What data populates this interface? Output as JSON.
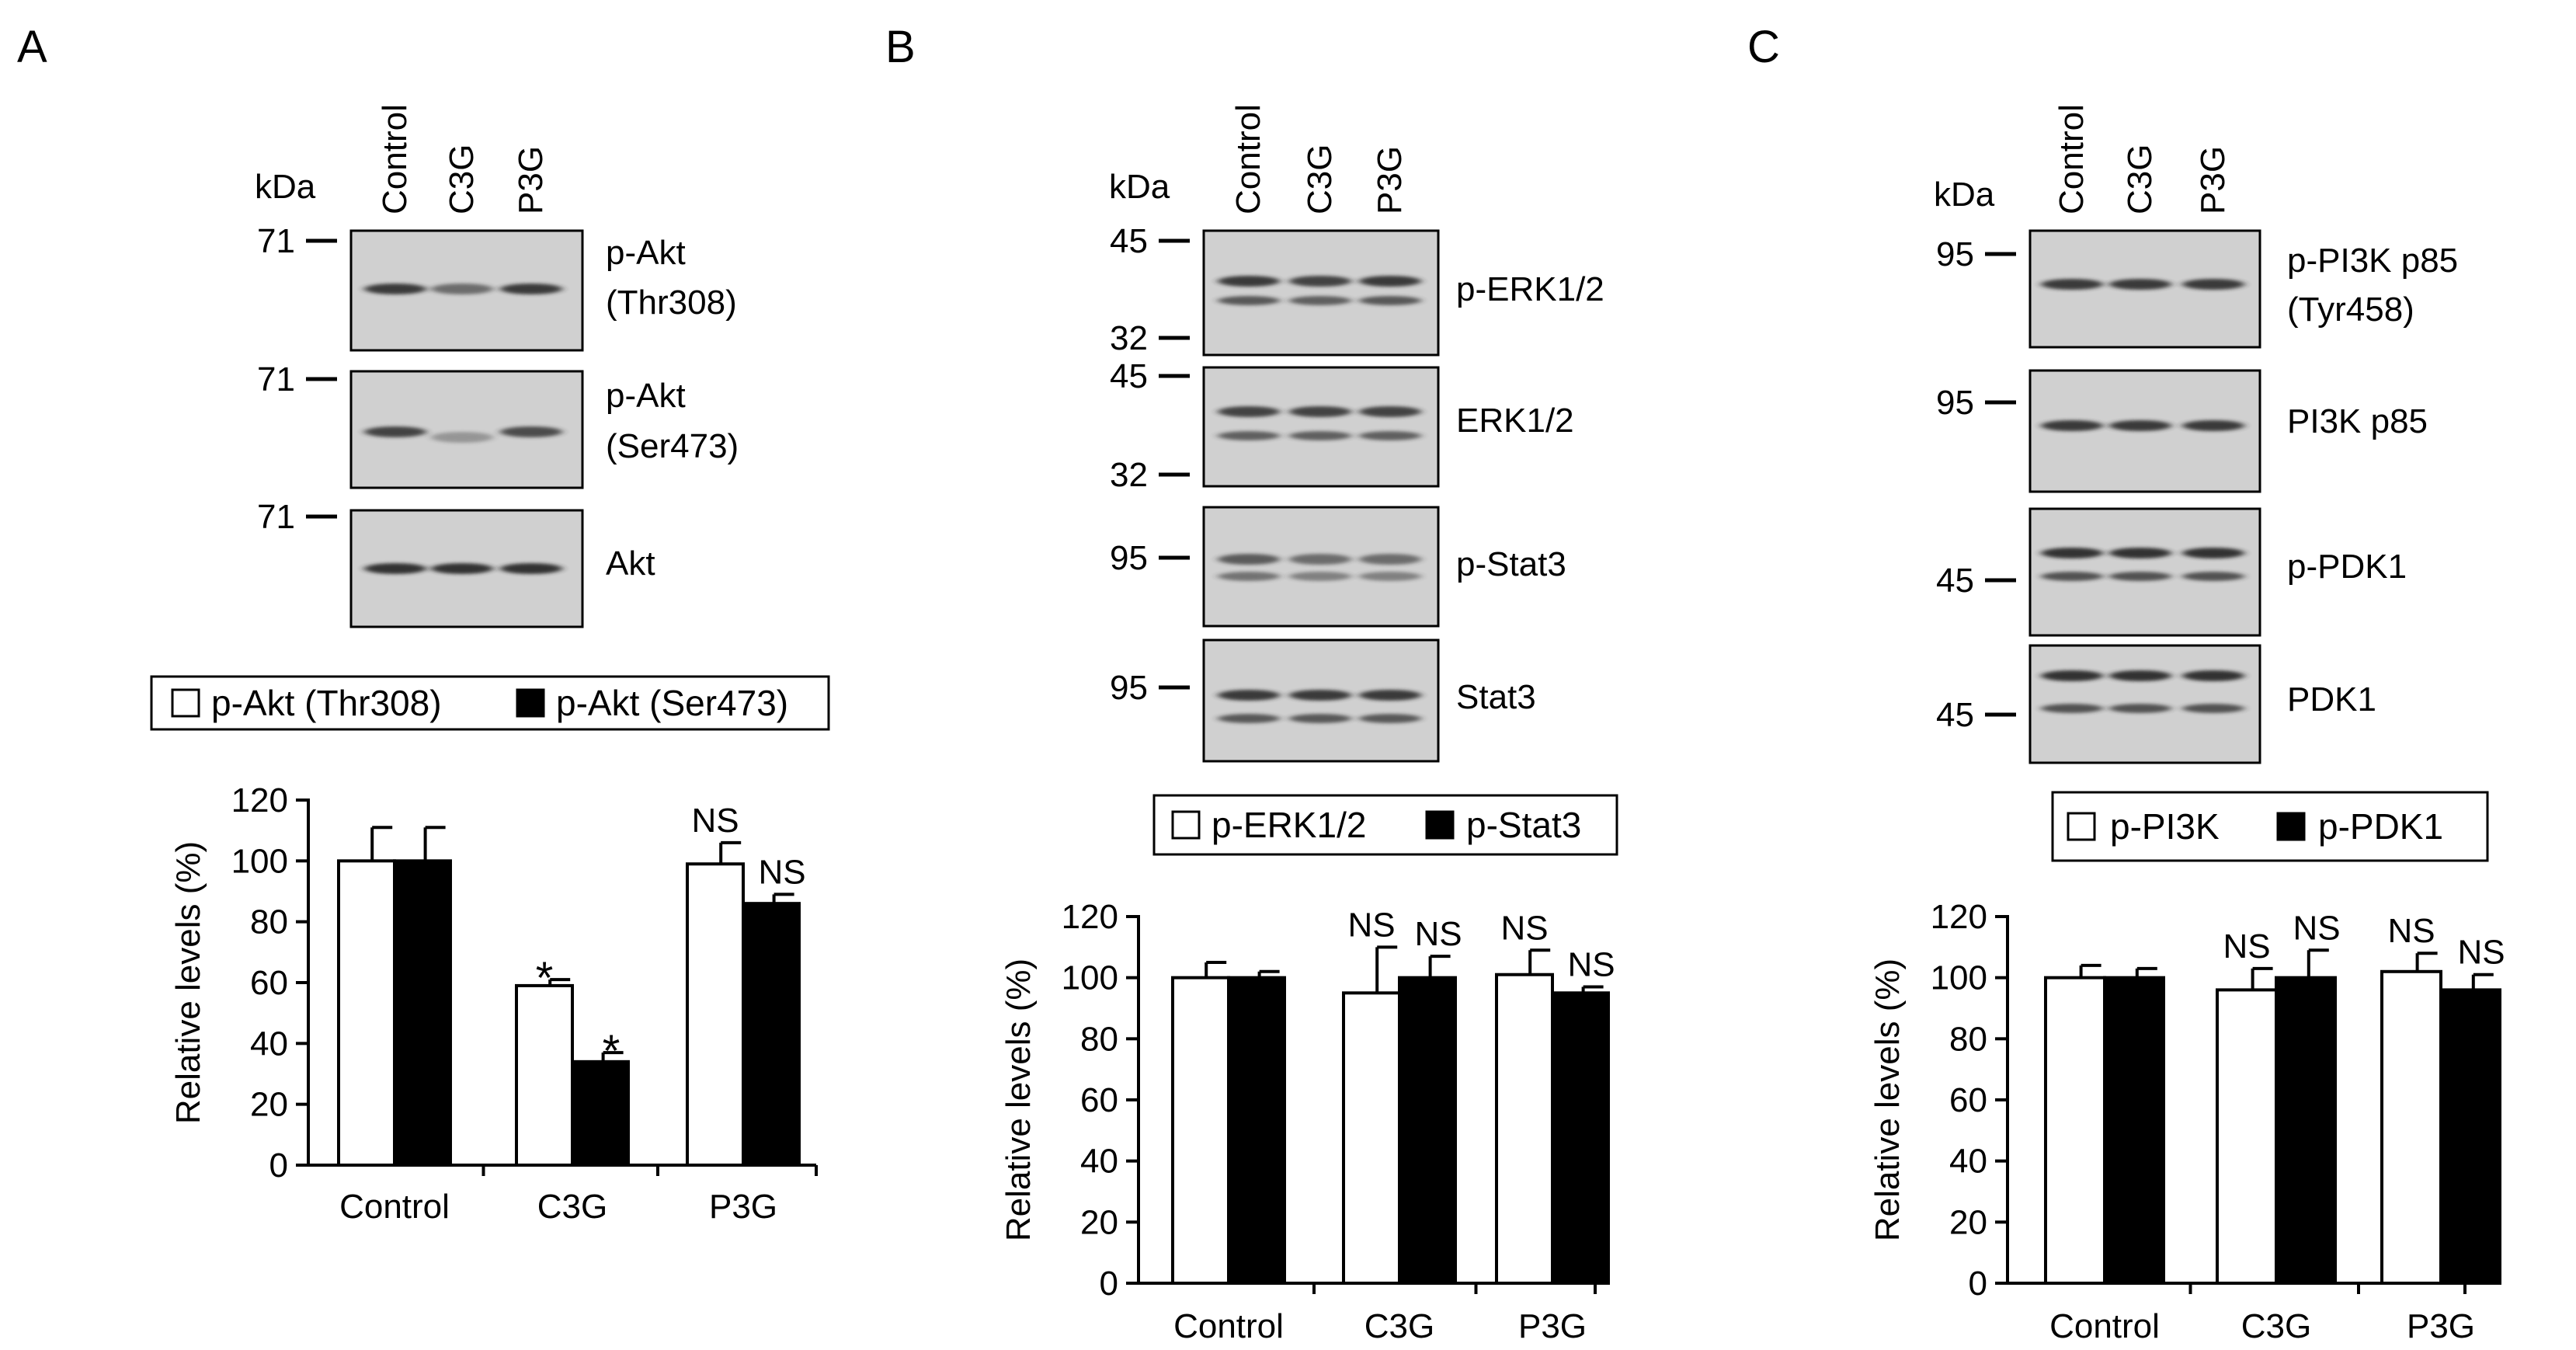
{
  "panels": [
    {
      "letter": "A",
      "kda_label": "kDa",
      "lanes": [
        "Control",
        "C3G",
        "P3G"
      ],
      "blots": [
        {
          "labels": [
            "p-Akt",
            "(Thr308)"
          ],
          "markers": [
            "71"
          ]
        },
        {
          "labels": [
            "p-Akt",
            "(Ser473)"
          ],
          "markers": [
            "71"
          ]
        },
        {
          "labels": [
            "Akt"
          ],
          "markers": [
            "71"
          ]
        }
      ],
      "legend": [
        "p-Akt (Thr308)",
        "p-Akt (Ser473)"
      ]
    },
    {
      "letter": "B",
      "kda_label": "kDa",
      "lanes": [
        "Control",
        "C3G",
        "P3G"
      ],
      "blots": [
        {
          "labels": [
            "p-ERK1/2"
          ],
          "markers": [
            "45",
            "32"
          ]
        },
        {
          "labels": [
            "ERK1/2"
          ],
          "markers": [
            "45",
            "32"
          ]
        },
        {
          "labels": [
            "p-Stat3"
          ],
          "markers": [
            "95"
          ]
        },
        {
          "labels": [
            "Stat3"
          ],
          "markers": [
            "95"
          ]
        }
      ],
      "legend": [
        "p-ERK1/2",
        "p-Stat3"
      ]
    },
    {
      "letter": "C",
      "kda_label": "kDa",
      "lanes": [
        "Control",
        "C3G",
        "P3G"
      ],
      "blots": [
        {
          "labels": [
            "p-PI3K p85",
            "(Tyr458)"
          ],
          "markers": [
            "95"
          ]
        },
        {
          "labels": [
            "PI3K p85"
          ],
          "markers": [
            "95"
          ]
        },
        {
          "labels": [
            "p-PDK1"
          ],
          "markers": [
            "45"
          ]
        },
        {
          "labels": [
            "PDK1"
          ],
          "markers": [
            "45"
          ]
        }
      ],
      "legend": [
        "p-PI3K",
        "p-PDK1"
      ]
    }
  ],
  "colors": {
    "open_bar": "#ffffff",
    "filled_bar": "#000000",
    "blot_bg": "#d0d0d0",
    "band": "#2a2a2a"
  },
  "chart_data": [
    {
      "type": "bar",
      "categories": [
        "Control",
        "C3G",
        "P3G"
      ],
      "ylabel": "Relative levels (%)",
      "ylim": [
        0,
        120
      ],
      "yticks": [
        0,
        20,
        40,
        60,
        80,
        100,
        120
      ],
      "series": [
        {
          "name": "p-Akt (Thr308)",
          "values": [
            100,
            59,
            99
          ],
          "errors": [
            11,
            2,
            7
          ],
          "annotations": [
            "",
            "*",
            "NS"
          ]
        },
        {
          "name": "p-Akt (Ser473)",
          "values": [
            100,
            34,
            86
          ],
          "errors": [
            11,
            3,
            3
          ],
          "annotations": [
            "",
            "*",
            "NS"
          ]
        }
      ]
    },
    {
      "type": "bar",
      "categories": [
        "Control",
        "C3G",
        "P3G"
      ],
      "ylabel": "Relative levels (%)",
      "ylim": [
        0,
        120
      ],
      "yticks": [
        0,
        20,
        40,
        60,
        80,
        100,
        120
      ],
      "series": [
        {
          "name": "p-ERK1/2",
          "values": [
            100,
            95,
            101
          ],
          "errors": [
            5,
            15,
            8
          ],
          "annotations": [
            "",
            "NS",
            "NS"
          ]
        },
        {
          "name": "p-Stat3",
          "values": [
            100,
            100,
            95
          ],
          "errors": [
            2,
            7,
            2
          ],
          "annotations": [
            "",
            "NS",
            "NS"
          ]
        }
      ]
    },
    {
      "type": "bar",
      "categories": [
        "Control",
        "C3G",
        "P3G"
      ],
      "ylabel": "Relative levels (%)",
      "ylim": [
        0,
        120
      ],
      "yticks": [
        0,
        20,
        40,
        60,
        80,
        100,
        120
      ],
      "series": [
        {
          "name": "p-PI3K",
          "values": [
            100,
            96,
            102
          ],
          "errors": [
            4,
            7,
            6
          ],
          "annotations": [
            "",
            "NS",
            "NS"
          ]
        },
        {
          "name": "p-PDK1",
          "values": [
            100,
            100,
            96
          ],
          "errors": [
            3,
            9,
            5
          ],
          "annotations": [
            "",
            "NS",
            "NS"
          ]
        }
      ]
    }
  ]
}
